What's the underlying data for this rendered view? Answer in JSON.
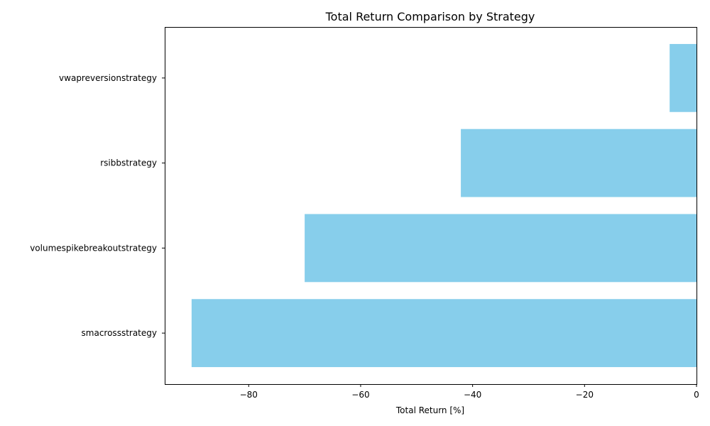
{
  "chart_data": {
    "type": "bar",
    "orientation": "horizontal",
    "title": "Total Return Comparison by Strategy",
    "xlabel": "Total Return [%]",
    "ylabel": "",
    "categories": [
      "smacrossstrategy",
      "volumespikebreakoutstrategy",
      "rsibbstrategy",
      "vwapreversionstrategy"
    ],
    "values": [
      -90.2,
      -70.0,
      -42.1,
      -4.8
    ],
    "xlim": [
      -95,
      0
    ],
    "xticks": [
      -80,
      -60,
      -40,
      -20,
      0
    ],
    "xtick_labels": [
      "−80",
      "−60",
      "−40",
      "−20",
      "0"
    ],
    "bar_color": "#87CEEB",
    "grid": false,
    "legend": "none"
  }
}
